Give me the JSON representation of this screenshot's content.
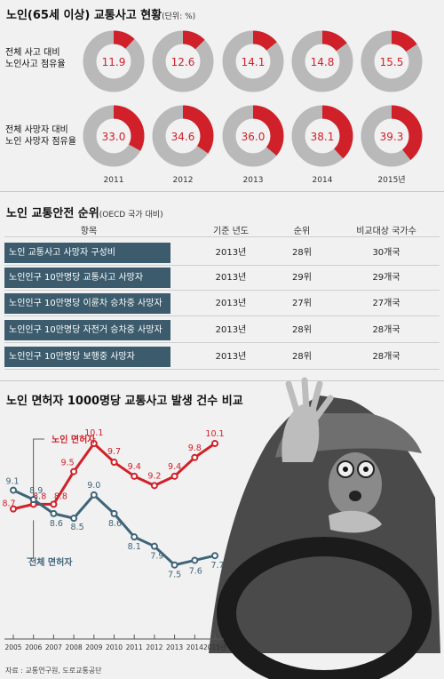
{
  "section1": {
    "title": "노인(65세 이상) 교통사고 현황",
    "unit": "(단위: %)",
    "row1_label_a": "전체 사고 대비",
    "row1_label_b": "노인사고 점유율",
    "row2_label_a": "전체 사망자 대비",
    "row2_label_b": "노인 사망자 점유율",
    "accent": "#d0212a",
    "track": "#b9b9b9"
  },
  "section2": {
    "title": "노인 교통안전 순위",
    "unit": "(OECD 국가 대비)",
    "headers": [
      "항목",
      "기준 년도",
      "순위",
      "비교대상 국가수"
    ],
    "rows": [
      {
        "item": "노인 교통사고 사망자 구성비",
        "year": "2013년",
        "rank": "28위",
        "countries": "30개국"
      },
      {
        "item": "노인인구 10만명당 교통사고 사망자",
        "year": "2013년",
        "rank": "29위",
        "countries": "29개국"
      },
      {
        "item": "노인인구 10만명당 이륜차 승차중 사망자",
        "year": "2013년",
        "rank": "27위",
        "countries": "27개국"
      },
      {
        "item": "노인인구 10만명당 자전거 승차중 사망자",
        "year": "2013년",
        "rank": "28위",
        "countries": "28개국"
      },
      {
        "item": "노인인구 10만명당 보행중 사망자",
        "year": "2013년",
        "rank": "28위",
        "countries": "28개국"
      }
    ],
    "label_bg": "#3c5c6e"
  },
  "section3": {
    "title": "노인 면허자 1000명당 교통사고 발생 건수 비교",
    "series_label_elderly": "노인 면허자",
    "series_label_total": "전체 면허자",
    "source": "자료 : 교통연구원, 도로교통공단"
  },
  "chart_data": [
    {
      "type": "pie",
      "title": "전체 사고 대비 노인사고 점유율",
      "categories": [
        "2011",
        "2012",
        "2013",
        "2014",
        "2015년"
      ],
      "values": [
        11.9,
        12.6,
        14.1,
        14.8,
        15.5
      ],
      "value_labels": [
        "11.9",
        "12.6",
        "14.1",
        "14.8",
        "15.5"
      ]
    },
    {
      "type": "pie",
      "title": "전체 사망자 대비 노인 사망자 점유율",
      "categories": [
        "2011",
        "2012",
        "2013",
        "2014",
        "2015년"
      ],
      "values": [
        33.0,
        34.6,
        36.0,
        38.1,
        39.3
      ],
      "value_labels": [
        "33.0",
        "34.6",
        "36.0",
        "38.1",
        "39.3"
      ]
    },
    {
      "type": "line",
      "x": [
        "2005",
        "2006",
        "2007",
        "2008",
        "2009",
        "2010",
        "2011",
        "2012",
        "2013",
        "2014",
        "2015년"
      ],
      "series": [
        {
          "name": "노인 면허자",
          "color": "#d0212a",
          "values": [
            8.7,
            8.8,
            8.8,
            9.5,
            10.1,
            9.7,
            9.4,
            9.2,
            9.4,
            9.8,
            10.1
          ],
          "labels": [
            "8.7",
            "8.8",
            "8.8",
            "9.5",
            "10.1",
            "9.7",
            "9.4",
            "9.2",
            "9.4",
            "9.8",
            "10.1"
          ]
        },
        {
          "name": "전체 면허자",
          "color": "#3f6478",
          "values": [
            9.1,
            8.9,
            8.6,
            8.5,
            9.0,
            8.6,
            8.1,
            7.9,
            7.5,
            7.6,
            7.7
          ],
          "labels": [
            "9.1",
            "8.9",
            "8.6",
            "8.5",
            "9.0",
            "8.6",
            "8.1",
            "7.9",
            "7.5",
            "7.6",
            "7.7"
          ]
        }
      ],
      "ylim": [
        7.0,
        10.5
      ],
      "grid": false
    }
  ]
}
